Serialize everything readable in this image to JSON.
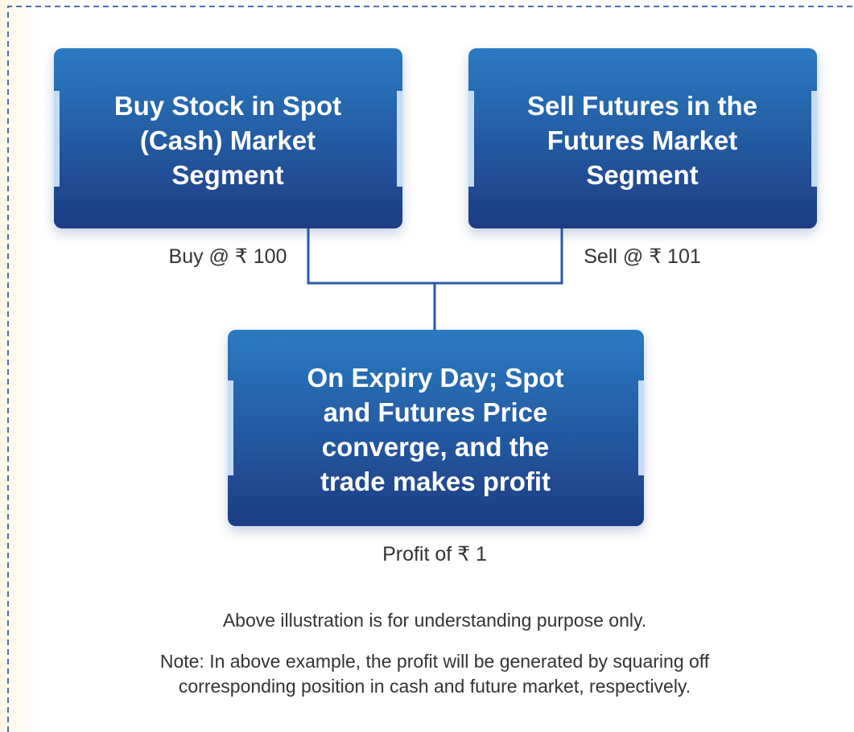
{
  "nodes": [
    {
      "lines": [
        "Buy Stock in Spot",
        "(Cash) Market",
        "Segment"
      ]
    },
    {
      "lines": [
        "Sell Futures in the",
        "Futures Market",
        "Segment"
      ]
    },
    {
      "lines": [
        "On Expiry Day; Spot",
        "and Futures Price",
        "converge, and the",
        "trade makes profit"
      ]
    }
  ],
  "edge_labels": [
    "Buy @ ₹ 100",
    "Sell @ ₹ 101",
    "Profit of ₹ 1"
  ],
  "disclaimer": "Above illustration is for understanding purpose only.",
  "note": [
    "Note: In above example, the profit will be generated by squaring off",
    "corresponding position in cash and future market, respectively."
  ]
}
